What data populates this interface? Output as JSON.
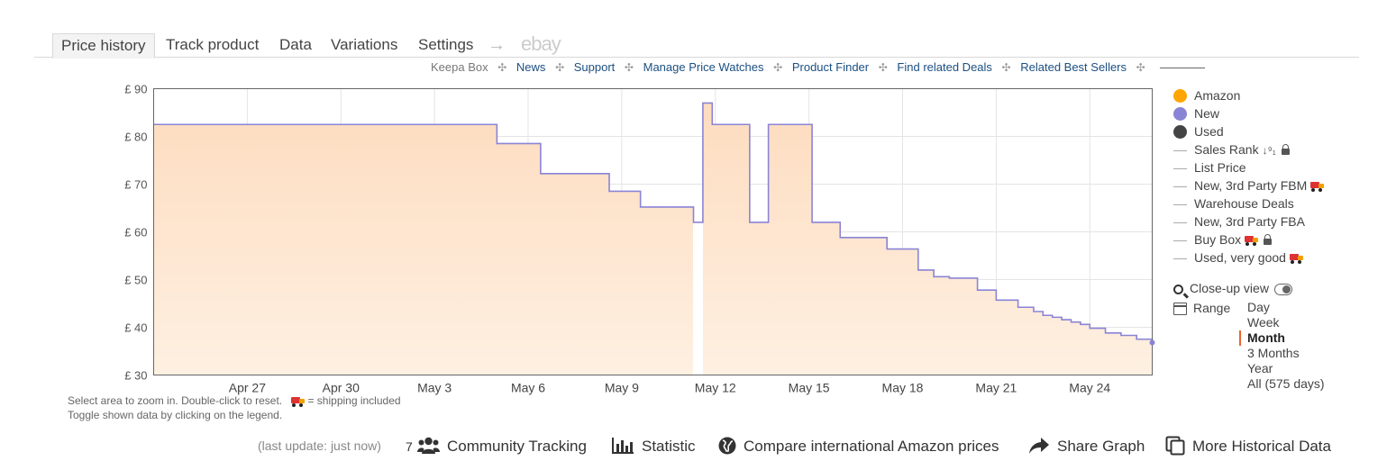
{
  "tabs": [
    {
      "label": "Price history",
      "active": true
    },
    {
      "label": "Track product"
    },
    {
      "label": "Data"
    },
    {
      "label": "Variations"
    },
    {
      "label": "Settings"
    }
  ],
  "tab_arrow": "→",
  "tab_ebay": "ebay",
  "subnav": {
    "keepa_box": "Keepa Box",
    "links": [
      "News",
      "Support",
      "Manage Price Watches",
      "Product Finder",
      "Find related Deals",
      "Related Best Sellers"
    ]
  },
  "chart_data": {
    "type": "area",
    "title": "",
    "xlabel": "",
    "ylabel": "",
    "y_unit": "£",
    "ylim": [
      30,
      90
    ],
    "yticks": [
      "£ 90",
      "£ 80",
      "£ 70",
      "£ 60",
      "£ 50",
      "£ 40",
      "£ 30"
    ],
    "x_range_days": [
      "Apr 24",
      "May 26"
    ],
    "xticks": [
      "Apr 27",
      "Apr 30",
      "May 3",
      "May 6",
      "May 9",
      "May 12",
      "May 15",
      "May 18",
      "May 21",
      "May 24"
    ],
    "grid": true,
    "series": [
      {
        "name": "New",
        "color": "#8a84d6",
        "fill": "#fde3c9",
        "step": true,
        "points": [
          {
            "x": "Apr 24",
            "y": 82.5
          },
          {
            "x": "Apr 30",
            "y": 82.5
          },
          {
            "x": "May 5",
            "y": 78.5
          },
          {
            "x": "May 6.4",
            "y": 72.2
          },
          {
            "x": "May 8.6",
            "y": 68.5
          },
          {
            "x": "May 9.6",
            "y": 65.2
          },
          {
            "x": "May 11.3",
            "y": 62
          },
          {
            "x": "May 11.6",
            "y": 87
          },
          {
            "x": "May 11.9",
            "y": 82.5
          },
          {
            "x": "May 13.1",
            "y": 62
          },
          {
            "x": "May 13.7",
            "y": 82.5
          },
          {
            "x": "May 15.1",
            "y": 62
          },
          {
            "x": "May 16",
            "y": 58.8
          },
          {
            "x": "May 17.5",
            "y": 56.4
          },
          {
            "x": "May 18.5",
            "y": 52
          },
          {
            "x": "May 19",
            "y": 50.6
          },
          {
            "x": "May 19.5",
            "y": 50.3
          },
          {
            "x": "May 20.4",
            "y": 47.8
          },
          {
            "x": "May 21",
            "y": 45.7
          },
          {
            "x": "May 21.7",
            "y": 44.2
          },
          {
            "x": "May 22.2",
            "y": 43.3
          },
          {
            "x": "May 22.5",
            "y": 42.5
          },
          {
            "x": "May 22.8",
            "y": 42.1
          },
          {
            "x": "May 23.1",
            "y": 41.6
          },
          {
            "x": "May 23.4",
            "y": 41.1
          },
          {
            "x": "May 23.7",
            "y": 40.6
          },
          {
            "x": "May 24",
            "y": 39.8
          },
          {
            "x": "May 24.5",
            "y": 38.8
          },
          {
            "x": "May 25",
            "y": 38.3
          },
          {
            "x": "May 25.5",
            "y": 37.5
          },
          {
            "x": "May 26",
            "y": 36.8
          }
        ]
      }
    ]
  },
  "hints": {
    "zoom": "Select area to zoom in. Double-click to reset.",
    "shipping": "= shipping included",
    "toggle": "Toggle shown data by clicking on the legend."
  },
  "legend": [
    {
      "label": "Amazon",
      "kind": "dot",
      "color": "#ffa500"
    },
    {
      "label": "New",
      "kind": "dot",
      "color": "#8a84d6"
    },
    {
      "label": "Used",
      "kind": "dot",
      "color": "#444444"
    },
    {
      "label": "Sales Rank",
      "kind": "line",
      "icons": [
        "sort-icon",
        "lock-icon"
      ]
    },
    {
      "label": "List Price",
      "kind": "line"
    },
    {
      "label": "New, 3rd Party FBM",
      "kind": "line",
      "icons": [
        "truck-icon"
      ]
    },
    {
      "label": "Warehouse Deals",
      "kind": "line"
    },
    {
      "label": "New, 3rd Party FBA",
      "kind": "line"
    },
    {
      "label": "Buy Box",
      "kind": "line",
      "icons": [
        "truck-icon",
        "lock-icon"
      ]
    },
    {
      "label": "Used, very good",
      "kind": "line",
      "icons": [
        "truck-icon"
      ]
    }
  ],
  "closeup": {
    "label": "Close-up view"
  },
  "range": {
    "label": "Range",
    "options": [
      "Day",
      "Week",
      "Month",
      "3 Months",
      "Year",
      "All (575 days)"
    ],
    "active": "Month"
  },
  "bottom": {
    "last_update": "(last update: just now)",
    "community_count": "7",
    "community": "Community Tracking",
    "statistic": "Statistic",
    "compare": "Compare international Amazon prices",
    "share": "Share Graph",
    "more": "More Historical Data"
  }
}
